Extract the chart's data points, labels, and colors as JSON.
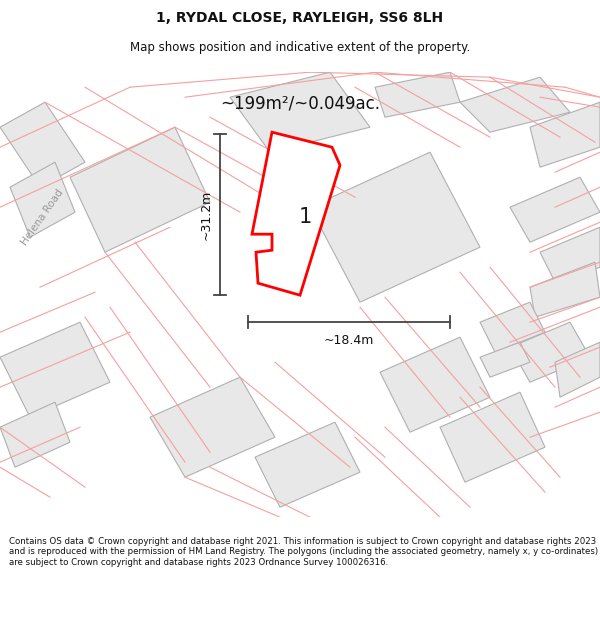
{
  "title": "1, RYDAL CLOSE, RAYLEIGH, SS6 8LH",
  "subtitle": "Map shows position and indicative extent of the property.",
  "area_text": "~199m²/~0.049ac.",
  "width_label": "~18.4m",
  "height_label": "~31.2m",
  "property_label": "1",
  "footer": "Contains OS data © Crown copyright and database right 2021. This information is subject to Crown copyright and database rights 2023 and is reproduced with the permission of HM Land Registry. The polygons (including the associated geometry, namely x, y co-ordinates) are subject to Crown copyright and database rights 2023 Ordnance Survey 100026316.",
  "bg_color": "#ffffff",
  "map_bg": "#ffffff",
  "property_fill": "#f0f0f0",
  "property_edge": "#ff0000",
  "building_fill": "#e8e8e8",
  "building_edge": "#b0b0b0",
  "pink_color": "#f5a0a0",
  "dim_color": "#444444",
  "road_label_color": "#999999",
  "text_color": "#111111"
}
